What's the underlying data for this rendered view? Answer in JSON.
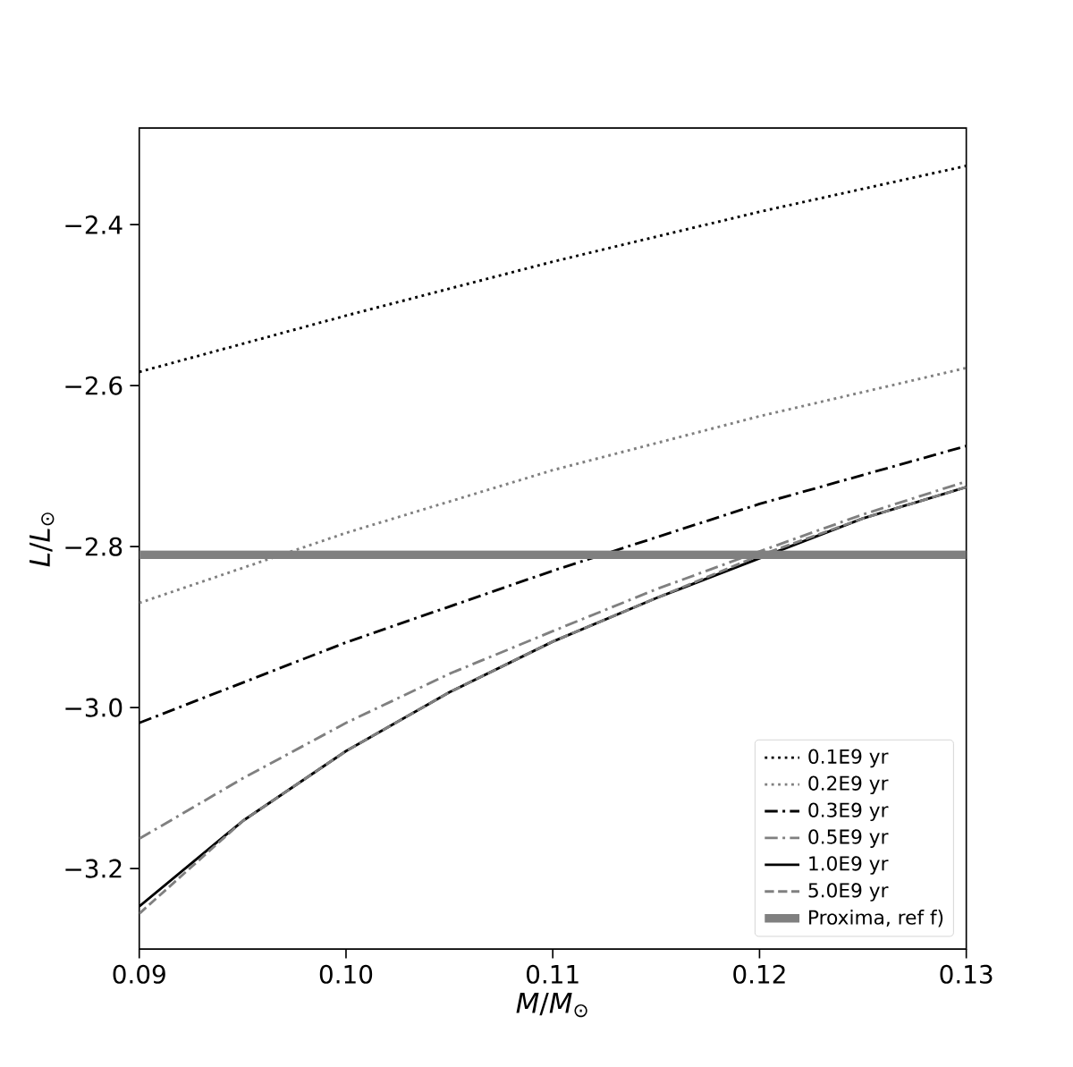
{
  "chart_data": {
    "type": "line",
    "xlabel": "*M*/*M*$_{⊙}$",
    "ylabel": "*L*/*L*$_{⊙}$",
    "x": [
      0.09,
      0.095,
      0.1,
      0.105,
      0.11,
      0.115,
      0.12,
      0.125,
      0.13
    ],
    "series": [
      {
        "name": "0.1E9 yr",
        "color": "#000000",
        "line_style": "dotted",
        "x": [
          0.09,
          0.1,
          0.11,
          0.12,
          0.13
        ],
        "values": [
          -2.583,
          -2.513,
          -2.446,
          -2.384,
          -2.327
        ]
      },
      {
        "name": "0.2E9 yr",
        "color": "#808080",
        "line_style": "dotted",
        "x": [
          0.09,
          0.1,
          0.11,
          0.12,
          0.13
        ],
        "values": [
          -2.87,
          -2.783,
          -2.705,
          -2.638,
          -2.578
        ]
      },
      {
        "name": "0.3E9 yr",
        "color": "#000000",
        "line_style": "dashdot",
        "x": [
          0.09,
          0.1,
          0.11,
          0.12,
          0.13
        ],
        "values": [
          -3.019,
          -2.919,
          -2.83,
          -2.747,
          -2.675
        ]
      },
      {
        "name": "0.5E9 yr",
        "color": "#808080",
        "line_style": "dashdot",
        "values": [
          -3.163,
          -3.088,
          -3.019,
          -2.958,
          -2.905,
          -2.853,
          -2.806,
          -2.76,
          -2.719
        ]
      },
      {
        "name": "1.0E9 yr",
        "color": "#000000",
        "line_style": "solid",
        "values": [
          -3.247,
          -3.141,
          -3.054,
          -2.981,
          -2.918,
          -2.864,
          null,
          -2.765,
          -2.726
        ]
      },
      {
        "name": "5.0E9 yr",
        "color": "#808080",
        "line_style": "dashed",
        "values": [
          -3.256,
          -3.141,
          -3.054,
          -2.981,
          -2.918,
          -2.864,
          -2.811,
          -2.765,
          -2.726
        ]
      }
    ],
    "ref_lines": [
      {
        "axis": "y",
        "value": -2.81,
        "label": "Proxima, ref f)",
        "color": "#808080"
      }
    ],
    "xlim": [
      0.09,
      0.13
    ],
    "ylim": [
      -3.3,
      -2.28
    ],
    "xticks": [
      {
        "value": 0.09,
        "label": "0.09"
      },
      {
        "value": 0.1,
        "label": "0.10"
      },
      {
        "value": 0.11,
        "label": "0.11"
      },
      {
        "value": 0.12,
        "label": "0.12"
      },
      {
        "value": 0.13,
        "label": "0.13"
      }
    ],
    "yticks": [
      {
        "value": -3.2,
        "label": "−3.2"
      },
      {
        "value": -3.0,
        "label": "−3.0"
      },
      {
        "value": -2.8,
        "label": "−2.8"
      },
      {
        "value": -2.6,
        "label": "−2.6"
      },
      {
        "value": -2.4,
        "label": "−2.4"
      }
    ],
    "legend": "bottom right",
    "grid": false,
    "marker": "none"
  }
}
